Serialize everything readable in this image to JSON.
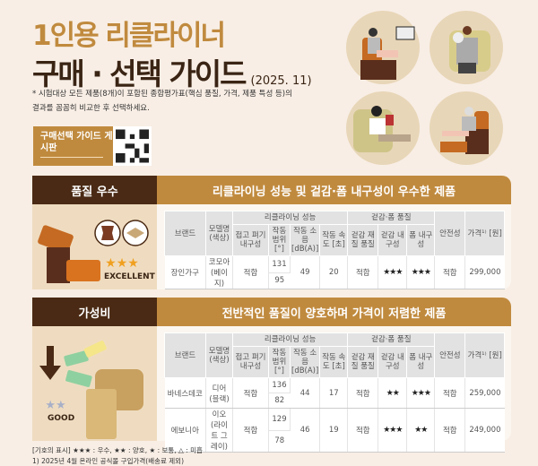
{
  "header": {
    "title_line1": "1인용 리클라이너",
    "title_line2": "구매 · 선택 가이드",
    "date": "(2025. 11)",
    "note": "* 시험대상 모든 제품(8개)이 포함된 종합평가표(핵심 품질, 가격, 제품 특성 등)의 결과를 꼼꼼히 비교한 후 선택하세요.",
    "board_label": "구매선택 가이드 게시판"
  },
  "columns": {
    "brand": "브랜드",
    "model": "모델명 (색상)",
    "recline_group": "리클라이닝 성능",
    "fold": "접고 펴기 내구성",
    "range": "작동 범위 [°]",
    "noise": "작동 소음 [dB(A)]",
    "speed": "작동 속도 [초]",
    "fabric_group": "겉감·폼 품질",
    "fabric_quality": "겉감 재질 품질",
    "fabric_dur": "겉감 내구성",
    "foam_dur": "폼 내구성",
    "safety": "안전성",
    "price": "가격¹⁾ [원]"
  },
  "sections": [
    {
      "tag": "품질 우수",
      "headline": "리클라이닝 성능 및 겉감·폼 내구성이 우수한 제품",
      "badge": "EXCELLENT",
      "badge_stars": 3,
      "rows": [
        {
          "brand": "장인가구",
          "model": "코모아 (베이지)",
          "fold": "적합",
          "range_max": "131",
          "range_min": "95",
          "noise": "49",
          "speed": "20",
          "fabric_quality": "적합",
          "fabric_dur": "★★★",
          "foam_dur": "★★★",
          "safety": "적합",
          "price": "299,000"
        }
      ]
    },
    {
      "tag": "가성비",
      "headline": "전반적인 품질이 양호하며 가격이 저렴한 제품",
      "badge": "GOOD",
      "badge_stars": 2,
      "rows": [
        {
          "brand": "바네스데코",
          "model": "디어 (블랙)",
          "fold": "적합",
          "range_max": "136",
          "range_min": "82",
          "noise": "44",
          "speed": "17",
          "fabric_quality": "적합",
          "fabric_dur": "★★",
          "foam_dur": "★★★",
          "safety": "적합",
          "price": "259,000"
        },
        {
          "brand": "에보니아",
          "model": "이오 (라이트 그레이)",
          "fold": "적합",
          "range_max": "129",
          "range_min": "78",
          "noise": "46",
          "speed": "19",
          "fabric_quality": "적합",
          "fabric_dur": "★★★",
          "foam_dur": "★★",
          "safety": "적합",
          "price": "249,000"
        }
      ]
    }
  ],
  "footnotes": {
    "legend": "[기호의 표시] ★★★ : 우수, ★★ : 양호, ★ : 보통, △ : 미흡",
    "note1": "1) 2025년 4월 온라인 공식몰 구입가격(배송료 제외)"
  },
  "colors": {
    "gold": "#c08a3e",
    "dark_brown": "#4a2a14",
    "background": "#f8eee5"
  }
}
